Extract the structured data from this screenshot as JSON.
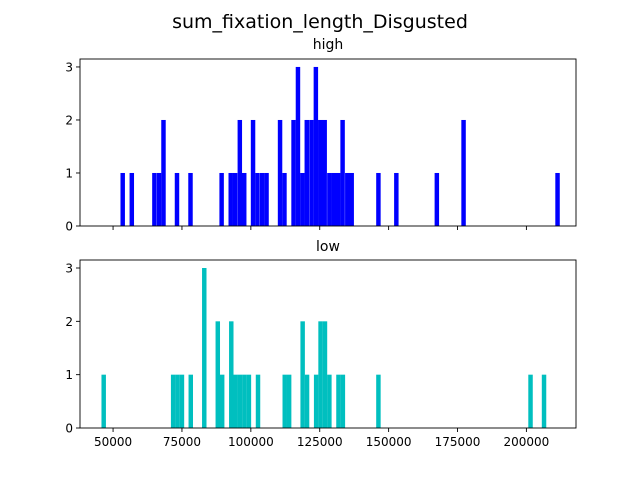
{
  "chart_data": {
    "type": "bar",
    "title": "sum_fixation_length_Disgusted",
    "xlim": [
      38000,
      218000
    ],
    "xticks": [
      "50000",
      "75000",
      "100000",
      "125000",
      "150000",
      "175000",
      "200000"
    ],
    "xtick_values": [
      50000,
      75000,
      100000,
      125000,
      150000,
      175000,
      200000
    ],
    "bin_width": 1620,
    "panels": [
      {
        "title": "high",
        "color": "#0000ff",
        "ylim": [
          0,
          3.15
        ],
        "yticks": [
          0,
          1,
          2,
          3
        ],
        "x_tick_labels_shown": false,
        "bins": [
          {
            "x": 53500,
            "count": 1
          },
          {
            "x": 56800,
            "count": 1
          },
          {
            "x": 65000,
            "count": 1
          },
          {
            "x": 66700,
            "count": 1
          },
          {
            "x": 68300,
            "count": 2
          },
          {
            "x": 73200,
            "count": 1
          },
          {
            "x": 78100,
            "count": 1
          },
          {
            "x": 89400,
            "count": 1
          },
          {
            "x": 92700,
            "count": 1
          },
          {
            "x": 94300,
            "count": 1
          },
          {
            "x": 96000,
            "count": 2
          },
          {
            "x": 97600,
            "count": 1
          },
          {
            "x": 100800,
            "count": 2
          },
          {
            "x": 102400,
            "count": 1
          },
          {
            "x": 104100,
            "count": 1
          },
          {
            "x": 105700,
            "count": 1
          },
          {
            "x": 110600,
            "count": 2
          },
          {
            "x": 112200,
            "count": 1
          },
          {
            "x": 115500,
            "count": 2
          },
          {
            "x": 117100,
            "count": 3
          },
          {
            "x": 118700,
            "count": 1
          },
          {
            "x": 120300,
            "count": 2
          },
          {
            "x": 122000,
            "count": 2
          },
          {
            "x": 123600,
            "count": 3
          },
          {
            "x": 125200,
            "count": 2
          },
          {
            "x": 126800,
            "count": 2
          },
          {
            "x": 128500,
            "count": 1
          },
          {
            "x": 130100,
            "count": 1
          },
          {
            "x": 131700,
            "count": 1
          },
          {
            "x": 133300,
            "count": 2
          },
          {
            "x": 135000,
            "count": 1
          },
          {
            "x": 136600,
            "count": 1
          },
          {
            "x": 146300,
            "count": 1
          },
          {
            "x": 152800,
            "count": 1
          },
          {
            "x": 167500,
            "count": 1
          },
          {
            "x": 177200,
            "count": 2
          },
          {
            "x": 211300,
            "count": 1
          }
        ]
      },
      {
        "title": "low",
        "color": "#00bfbf",
        "ylim": [
          0,
          3.15
        ],
        "yticks": [
          0,
          1,
          2,
          3
        ],
        "x_tick_labels_shown": true,
        "bins": [
          {
            "x": 46600,
            "count": 1
          },
          {
            "x": 71800,
            "count": 1
          },
          {
            "x": 73400,
            "count": 1
          },
          {
            "x": 75000,
            "count": 1
          },
          {
            "x": 78200,
            "count": 1
          },
          {
            "x": 83100,
            "count": 3
          },
          {
            "x": 88000,
            "count": 2
          },
          {
            "x": 89600,
            "count": 1
          },
          {
            "x": 92900,
            "count": 2
          },
          {
            "x": 94500,
            "count": 1
          },
          {
            "x": 96100,
            "count": 1
          },
          {
            "x": 97700,
            "count": 1
          },
          {
            "x": 99300,
            "count": 1
          },
          {
            "x": 102600,
            "count": 1
          },
          {
            "x": 112300,
            "count": 1
          },
          {
            "x": 113900,
            "count": 1
          },
          {
            "x": 118800,
            "count": 2
          },
          {
            "x": 120400,
            "count": 1
          },
          {
            "x": 123700,
            "count": 1
          },
          {
            "x": 125300,
            "count": 2
          },
          {
            "x": 126900,
            "count": 2
          },
          {
            "x": 128500,
            "count": 1
          },
          {
            "x": 131800,
            "count": 1
          },
          {
            "x": 133400,
            "count": 1
          },
          {
            "x": 146300,
            "count": 1
          },
          {
            "x": 201500,
            "count": 1
          },
          {
            "x": 206400,
            "count": 1
          }
        ]
      }
    ]
  }
}
